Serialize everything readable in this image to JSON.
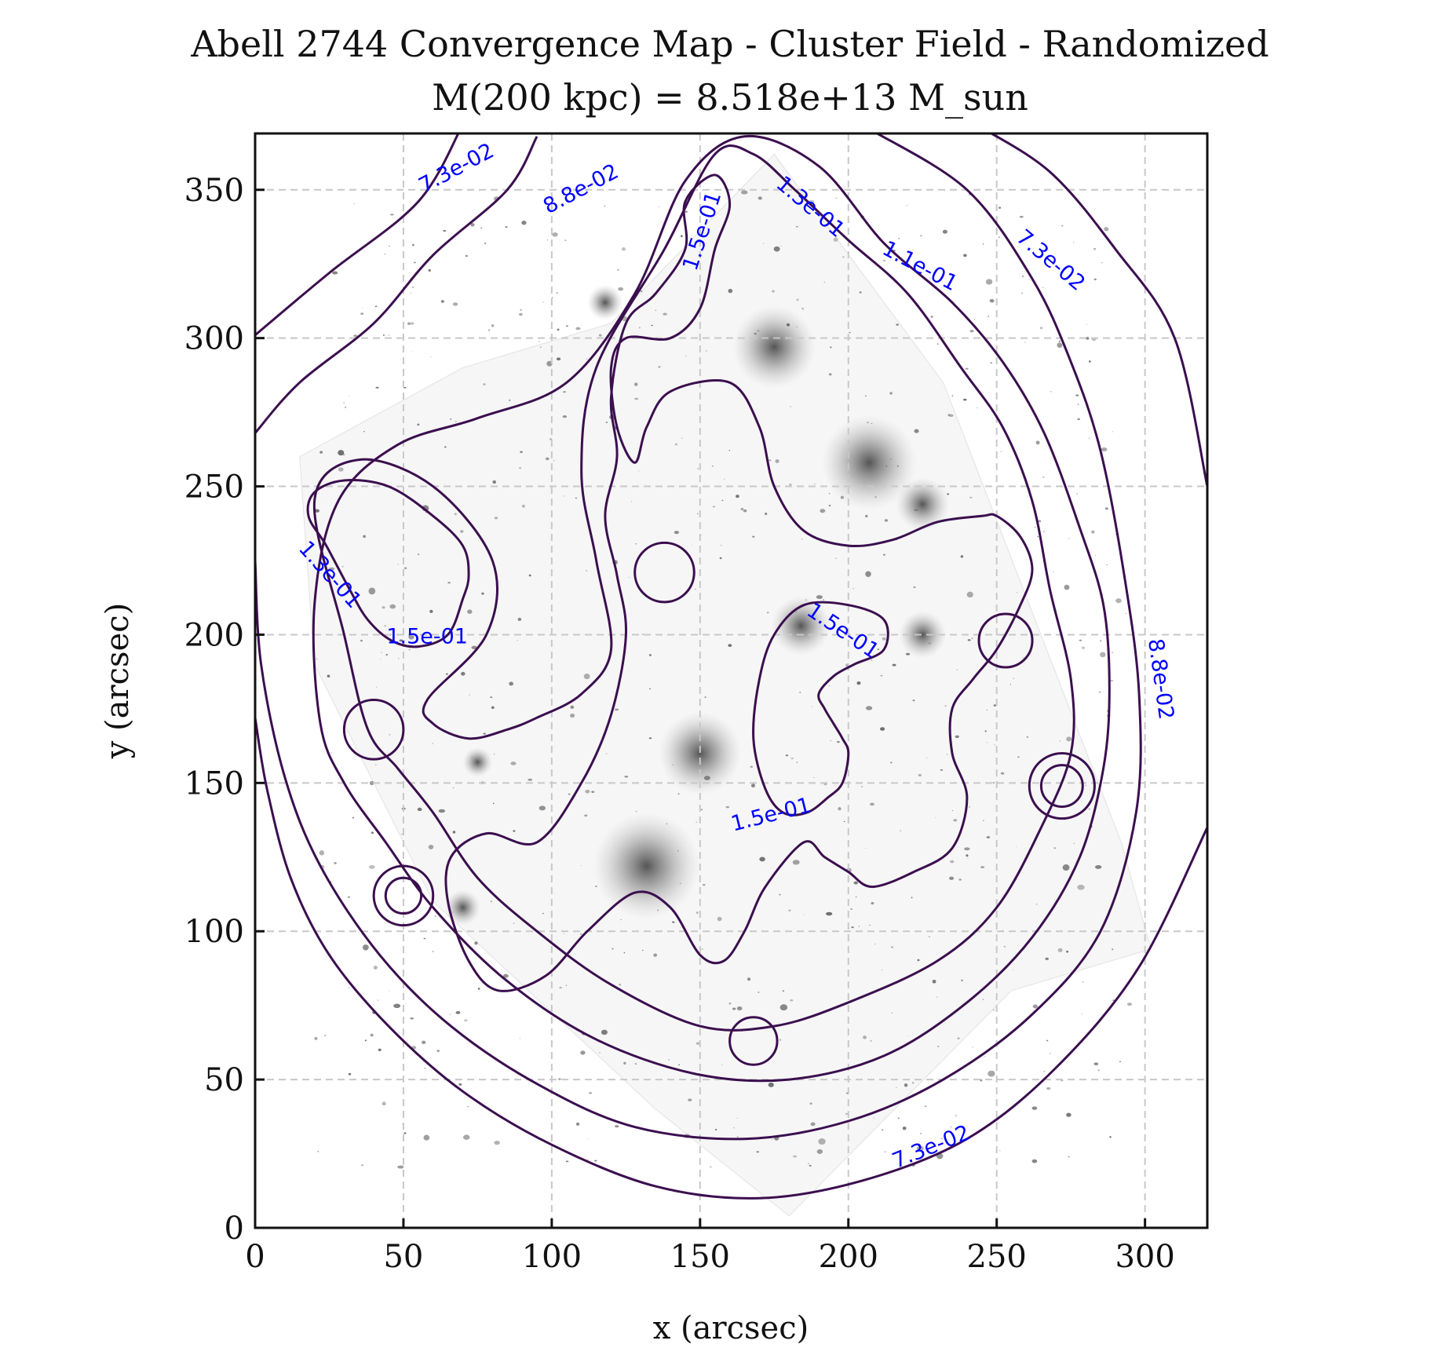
{
  "chart_data": {
    "type": "contour",
    "title": "Abell 2744 Convergence Map - Cluster Field - Randomized",
    "subtitle": "M(200 kpc) = 8.518e+13 M_sun",
    "xlabel": "x (arcsec)",
    "ylabel": "y (arcsec)",
    "xlim": [
      0,
      321
    ],
    "ylim": [
      0,
      369
    ],
    "xticks": [
      0,
      50,
      100,
      150,
      200,
      250,
      300
    ],
    "yticks": [
      0,
      50,
      100,
      150,
      200,
      250,
      300,
      350
    ],
    "grid": true,
    "background": "grayscale HST image of the Abell 2744 cluster field",
    "contour_color": "#3b0f4f",
    "label_color": "#0000ff",
    "contour_levels": [
      0.073,
      0.088,
      0.11,
      0.13,
      0.15
    ],
    "contours": [
      {
        "level": 0.073,
        "points": [
          [
            0,
            301
          ],
          [
            25,
            322
          ],
          [
            55,
            346
          ],
          [
            70,
            372
          ]
        ]
      },
      {
        "level": 0.073,
        "points": [
          [
            243,
            372
          ],
          [
            268,
            356
          ],
          [
            290,
            330
          ],
          [
            310,
            300
          ],
          [
            321,
            250
          ]
        ]
      },
      {
        "level": 0.073,
        "points": [
          [
            0,
            172
          ],
          [
            4,
            148
          ],
          [
            12,
            118
          ],
          [
            25,
            92
          ],
          [
            45,
            68
          ],
          [
            70,
            46
          ],
          [
            100,
            28
          ],
          [
            135,
            14
          ],
          [
            170,
            10
          ],
          [
            205,
            16
          ],
          [
            240,
            30
          ],
          [
            270,
            54
          ],
          [
            298,
            88
          ],
          [
            321,
            135
          ]
        ]
      },
      {
        "level": 0.088,
        "points": [
          [
            0,
            268
          ],
          [
            15,
            285
          ],
          [
            40,
            305
          ],
          [
            60,
            328
          ],
          [
            85,
            350
          ],
          [
            95,
            368
          ]
        ]
      },
      {
        "level": 0.088,
        "points": [
          [
            208,
            370
          ],
          [
            240,
            350
          ],
          [
            262,
            320
          ],
          [
            275,
            292
          ],
          [
            285,
            262
          ],
          [
            293,
            220
          ],
          [
            298,
            180
          ],
          [
            297,
            140
          ],
          [
            285,
            100
          ],
          [
            262,
            72
          ],
          [
            232,
            50
          ],
          [
            200,
            36
          ],
          [
            165,
            30
          ],
          [
            128,
            34
          ],
          [
            96,
            48
          ],
          [
            66,
            68
          ],
          [
            42,
            92
          ],
          [
            22,
            122
          ],
          [
            10,
            152
          ],
          [
            2,
            190
          ],
          [
            0,
            225
          ]
        ]
      },
      {
        "level": 0.11,
        "points": [
          [
            145,
            353
          ],
          [
            165,
            368
          ],
          [
            190,
            358
          ],
          [
            212,
            332
          ],
          [
            235,
            312
          ],
          [
            252,
            292
          ],
          [
            266,
            268
          ],
          [
            278,
            236
          ],
          [
            286,
            210
          ],
          [
            288,
            182
          ],
          [
            286,
            155
          ],
          [
            278,
            125
          ],
          [
            262,
            98
          ],
          [
            240,
            76
          ],
          [
            212,
            58
          ],
          [
            180,
            50
          ],
          [
            148,
            52
          ],
          [
            114,
            64
          ],
          [
            84,
            84
          ],
          [
            60,
            108
          ],
          [
            44,
            130
          ],
          [
            30,
            150
          ],
          [
            22,
            170
          ],
          [
            20,
            210
          ],
          [
            28,
            245
          ],
          [
            48,
            264
          ],
          [
            75,
            273
          ],
          [
            105,
            285
          ],
          [
            128,
            315
          ],
          [
            145,
            353
          ]
        ]
      },
      {
        "level": 0.13,
        "points": [
          [
            155,
            362
          ],
          [
            168,
            362
          ],
          [
            182,
            350
          ],
          [
            200,
            333
          ],
          [
            220,
            315
          ],
          [
            238,
            290
          ],
          [
            252,
            270
          ],
          [
            262,
            245
          ],
          [
            268,
            215
          ],
          [
            275,
            185
          ],
          [
            275,
            160
          ],
          [
            265,
            135
          ],
          [
            250,
            108
          ],
          [
            230,
            90
          ],
          [
            200,
            76
          ],
          [
            175,
            68
          ],
          [
            150,
            68
          ],
          [
            120,
            82
          ],
          [
            95,
            100
          ],
          [
            75,
            118
          ],
          [
            60,
            140
          ],
          [
            48,
            155
          ],
          [
            38,
            168
          ],
          [
            30,
            200
          ],
          [
            20,
            245
          ],
          [
            35,
            259
          ],
          [
            60,
            250
          ],
          [
            80,
            225
          ],
          [
            78,
            200
          ],
          [
            58,
            178
          ],
          [
            60,
            170
          ],
          [
            72,
            165
          ],
          [
            85,
            168
          ],
          [
            95,
            172
          ],
          [
            110,
            180
          ],
          [
            120,
            195
          ],
          [
            115,
            225
          ],
          [
            110,
            255
          ],
          [
            115,
            290
          ],
          [
            138,
            330
          ],
          [
            155,
            362
          ]
        ]
      },
      {
        "level": 0.15,
        "points": [
          [
            145,
            346
          ],
          [
            155,
            355
          ],
          [
            160,
            345
          ],
          [
            155,
            330
          ],
          [
            150,
            310
          ],
          [
            140,
            300
          ],
          [
            125,
            300
          ],
          [
            120,
            290
          ],
          [
            122,
            270
          ],
          [
            128,
            258
          ],
          [
            132,
            270
          ],
          [
            140,
            282
          ],
          [
            160,
            285
          ],
          [
            170,
            270
          ],
          [
            175,
            250
          ],
          [
            185,
            235
          ],
          [
            200,
            230
          ],
          [
            215,
            232
          ],
          [
            230,
            238
          ],
          [
            245,
            240
          ],
          [
            250,
            240
          ],
          [
            258,
            233
          ],
          [
            262,
            222
          ],
          [
            258,
            210
          ],
          [
            250,
            195
          ],
          [
            242,
            185
          ],
          [
            235,
            175
          ],
          [
            235,
            160
          ],
          [
            240,
            145
          ],
          [
            235,
            128
          ],
          [
            222,
            120
          ],
          [
            208,
            115
          ],
          [
            200,
            120
          ],
          [
            192,
            125
          ],
          [
            185,
            130
          ],
          [
            172,
            115
          ],
          [
            165,
            100
          ],
          [
            158,
            90
          ],
          [
            150,
            92
          ],
          [
            140,
            108
          ],
          [
            128,
            113
          ],
          [
            112,
            100
          ],
          [
            98,
            85
          ],
          [
            82,
            80
          ],
          [
            72,
            90
          ],
          [
            65,
            110
          ],
          [
            66,
            125
          ],
          [
            78,
            133
          ],
          [
            95,
            130
          ],
          [
            110,
            150
          ],
          [
            120,
            173
          ],
          [
            125,
            200
          ],
          [
            122,
            220
          ],
          [
            118,
            240
          ],
          [
            122,
            260
          ],
          [
            120,
            280
          ],
          [
            125,
            305
          ],
          [
            135,
            315
          ],
          [
            145,
            330
          ],
          [
            145,
            346
          ]
        ]
      },
      {
        "level": 0.15,
        "points": [
          [
            190,
            180
          ],
          [
            192,
            175
          ],
          [
            195,
            170
          ],
          [
            198,
            165
          ],
          [
            200,
            160
          ],
          [
            198,
            150
          ],
          [
            193,
            145
          ],
          [
            186,
            140
          ],
          [
            178,
            140
          ],
          [
            172,
            148
          ],
          [
            168,
            165
          ],
          [
            170,
            185
          ],
          [
            175,
            200
          ],
          [
            185,
            210
          ],
          [
            200,
            210
          ],
          [
            212,
            205
          ],
          [
            212,
            195
          ],
          [
            202,
            190
          ],
          [
            195,
            186
          ],
          [
            190,
            180
          ]
        ]
      },
      {
        "level": 0.15,
        "points": [
          [
            70,
            212
          ],
          [
            72,
            220
          ],
          [
            70,
            230
          ],
          [
            60,
            240
          ],
          [
            45,
            250
          ],
          [
            30,
            252
          ],
          [
            20,
            248
          ],
          [
            18,
            240
          ],
          [
            24,
            230
          ],
          [
            32,
            215
          ],
          [
            38,
            205
          ],
          [
            46,
            198
          ],
          [
            55,
            196
          ],
          [
            65,
            200
          ],
          [
            70,
            212
          ]
        ]
      },
      {
        "level": 0.15,
        "circle": true,
        "center": [
          138,
          221
        ],
        "r": 10
      },
      {
        "level": 0.15,
        "circle": true,
        "center": [
          253,
          198
        ],
        "r": 9
      },
      {
        "level": 0.15,
        "circle": true,
        "center": [
          40,
          168
        ],
        "r": 10
      },
      {
        "level": 0.15,
        "circle": true,
        "center": [
          272,
          149
        ],
        "r": 7
      },
      {
        "level": 0.15,
        "circle": true,
        "center": [
          272,
          149
        ],
        "r": 11
      },
      {
        "level": 0.15,
        "circle": true,
        "center": [
          50,
          112
        ],
        "r": 6
      },
      {
        "level": 0.15,
        "circle": true,
        "center": [
          50,
          112
        ],
        "r": 10
      },
      {
        "level": 0.15,
        "circle": true,
        "center": [
          168,
          63
        ],
        "r": 8
      }
    ],
    "contour_labels": [
      {
        "text": "7.3e-02",
        "x": 68,
        "y": 357,
        "angle": -28
      },
      {
        "text": "8.8e-02",
        "x": 110,
        "y": 350,
        "angle": -28
      },
      {
        "text": "1.5e-01",
        "x": 151,
        "y": 336,
        "angle": -72
      },
      {
        "text": "1.3e-01",
        "x": 187,
        "y": 344,
        "angle": 40
      },
      {
        "text": "1.1e-01",
        "x": 224,
        "y": 324,
        "angle": 28
      },
      {
        "text": "7.3e-02",
        "x": 268,
        "y": 326,
        "angle": 40
      },
      {
        "text": "1.3e-01",
        "x": 25,
        "y": 220,
        "angle": 48
      },
      {
        "text": "1.5e-01",
        "x": 58,
        "y": 199,
        "angle": 0
      },
      {
        "text": "1.5e-01",
        "x": 198,
        "y": 201,
        "angle": 34
      },
      {
        "text": "8.8e-02",
        "x": 305,
        "y": 185,
        "angle": 82
      },
      {
        "text": "1.5e-01",
        "x": 174,
        "y": 139,
        "angle": -14
      },
      {
        "text": "7.3e-02",
        "x": 228,
        "y": 27,
        "angle": -22
      }
    ]
  }
}
